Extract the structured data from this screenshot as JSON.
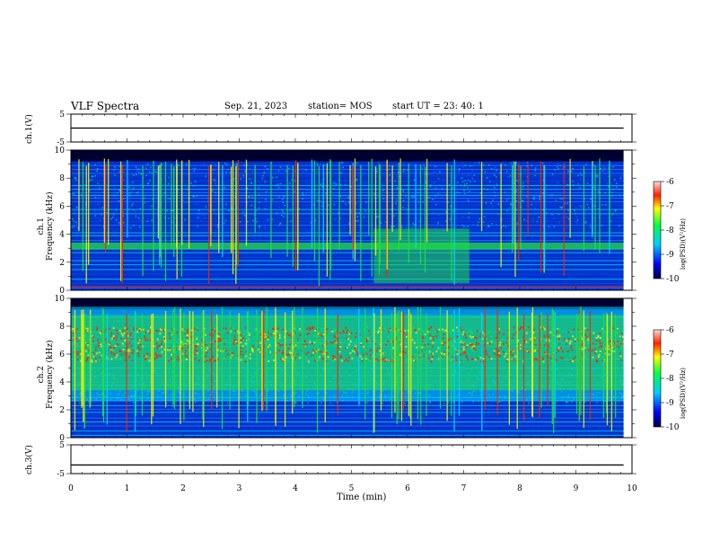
{
  "header": {
    "title": "VLF Spectra",
    "date": "Sep. 21, 2023",
    "station": "station= MOS",
    "start": "start  UT =   23: 40: 1"
  },
  "chart_data": [
    {
      "type": "line",
      "name": "ch1-waveform",
      "ylabel": "ch.1(V)",
      "ylim": [
        -5,
        5
      ],
      "yticks": [
        "5",
        "-5"
      ],
      "x": [
        0,
        10
      ],
      "values": [
        0,
        0
      ]
    },
    {
      "type": "heatmap",
      "name": "ch1-spectrogram",
      "ylabel": "ch.1\nFrequency (kHz)",
      "ylim": [
        0,
        10
      ],
      "yticks": [
        "0",
        "2",
        "4",
        "6",
        "8",
        "10"
      ],
      "xlim": [
        0,
        10
      ],
      "colorbar": {
        "label": "log(PSD)(V²/Hz)",
        "range": [
          -10,
          -6
        ],
        "ticks": [
          "-6",
          "-7",
          "-8",
          "-9",
          "-10"
        ]
      },
      "features": {
        "narrowband_band_khz": [
          2.9,
          3.4
        ],
        "enhanced_block_min": [
          5.4,
          7.1
        ],
        "enhanced_block_khz": [
          0.5,
          4.4
        ]
      }
    },
    {
      "type": "heatmap",
      "name": "ch2-spectrogram",
      "ylabel": "ch.2\nFrequency (kHz)",
      "ylim": [
        0,
        10
      ],
      "yticks": [
        "0",
        "2",
        "4",
        "6",
        "8",
        "10"
      ],
      "xlim": [
        0,
        10
      ],
      "colorbar": {
        "label": "log(PSD)(V²/Hz)",
        "range": [
          -10,
          -6
        ],
        "ticks": [
          "-6",
          "-7",
          "-8",
          "-9",
          "-10"
        ]
      },
      "features": {
        "peak_band_khz": [
          5.5,
          8.0
        ]
      }
    },
    {
      "type": "line",
      "name": "ch3-waveform",
      "ylabel": "ch.3(V)",
      "ylim": [
        -5,
        5
      ],
      "yticks": [
        "5",
        "-5"
      ],
      "x": [
        0,
        10
      ],
      "values": [
        -2,
        -2
      ]
    }
  ],
  "xaxis": {
    "label": "Time (min)",
    "ticks": [
      "0",
      "1",
      "2",
      "3",
      "4",
      "5",
      "6",
      "7",
      "8",
      "9",
      "10"
    ]
  },
  "colors": {
    "deep": "#000030",
    "blue": "#0033cc",
    "cyan": "#00d8ff",
    "green": "#22dd44",
    "yellow": "#f0f000",
    "red": "#ff2200"
  }
}
